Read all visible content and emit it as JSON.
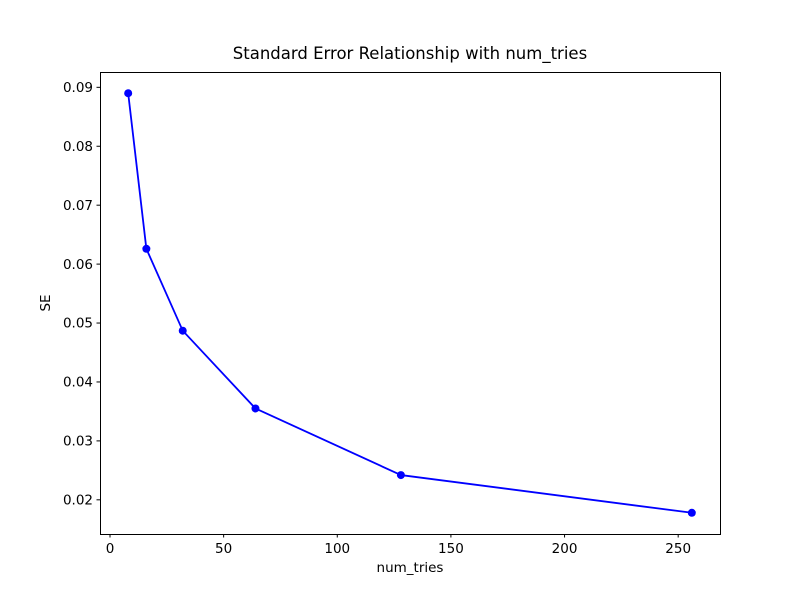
{
  "chart_data": {
    "type": "line",
    "title": "Standard Error Relationship with num_tries",
    "xlabel": "num_tries",
    "ylabel": "SE",
    "x": [
      8,
      16,
      32,
      64,
      128,
      256
    ],
    "y": [
      0.089,
      0.0626,
      0.0487,
      0.0355,
      0.0242,
      0.0178
    ],
    "xticks": [
      0,
      50,
      100,
      150,
      200,
      250
    ],
    "yticks": [
      0.02,
      0.03,
      0.04,
      0.05,
      0.06,
      0.07,
      0.08,
      0.09
    ],
    "xlim": [
      -4.4,
      268.4
    ],
    "ylim": [
      0.0142,
      0.0926
    ],
    "series_color": "#0000ff",
    "text_color": "#000000",
    "marker": "o",
    "grid": false,
    "legend": null
  }
}
